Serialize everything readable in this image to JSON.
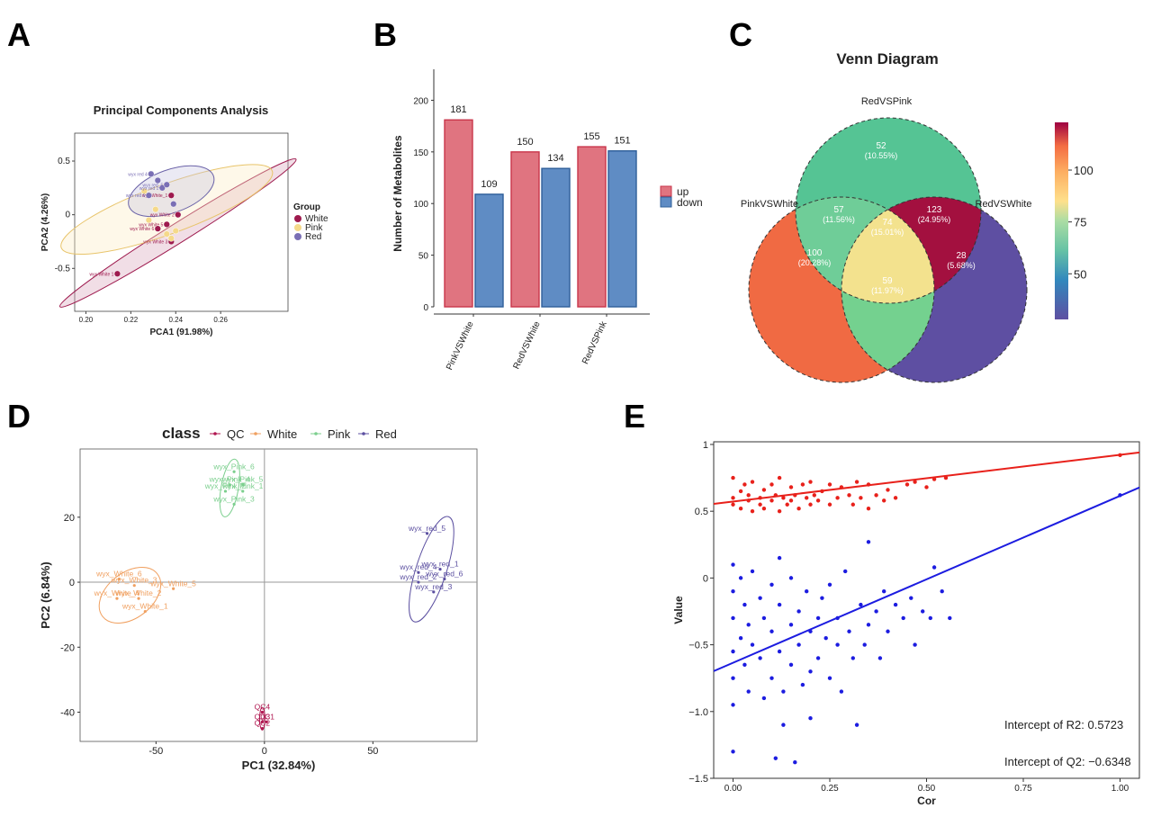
{
  "panels": {
    "a": "A",
    "b": "B",
    "c": "C",
    "d": "D",
    "e": "E"
  },
  "chart_data": [
    {
      "type": "scatter",
      "panel": "A",
      "title": "Principal Components Analysis",
      "xlabel": "PCA1 (91.98%)",
      "ylabel": "PCA2 (4.26%)",
      "xlim": [
        0.195,
        0.29
      ],
      "ylim": [
        -0.9,
        0.76
      ],
      "xticks": [
        "0.20",
        "0.22",
        "0.24",
        "0.26"
      ],
      "xtick_values": [
        0.2,
        0.22,
        0.24,
        0.26
      ],
      "yticks": [
        "0.5",
        "0",
        "-0.5"
      ],
      "ytick_values": [
        0.5,
        0,
        -0.5
      ],
      "legend_title": "Group",
      "legend": [
        {
          "name": "White",
          "color": "#9e1a4e"
        },
        {
          "name": "Pink",
          "color": "#f5d98a"
        },
        {
          "name": "Red",
          "color": "#7a6fb5"
        }
      ],
      "series": [
        {
          "name": "White",
          "color": "#9e1a4e",
          "points": [
            {
              "x": 0.214,
              "y": -0.55,
              "label": "wyx White 1"
            },
            {
              "x": 0.241,
              "y": 0.0,
              "label": "wyx White 2"
            },
            {
              "x": 0.238,
              "y": -0.25,
              "label": "wyx White 3"
            },
            {
              "x": 0.238,
              "y": 0.18,
              "label": "wyx White_1"
            },
            {
              "x": 0.236,
              "y": -0.09,
              "label": "wyx White 5"
            },
            {
              "x": 0.232,
              "y": -0.13,
              "label": "wyx White 6"
            }
          ]
        },
        {
          "name": "Pink",
          "color": "#f5d98a",
          "points": [
            {
              "x": 0.236,
              "y": -0.18,
              "label": ""
            },
            {
              "x": 0.231,
              "y": 0.05,
              "label": ""
            },
            {
              "x": 0.226,
              "y": 0.22,
              "label": ""
            },
            {
              "x": 0.238,
              "y": -0.22,
              "label": ""
            },
            {
              "x": 0.24,
              "y": -0.15,
              "label": ""
            },
            {
              "x": 0.228,
              "y": -0.05,
              "label": ""
            }
          ]
        },
        {
          "name": "Red",
          "color": "#7a6fb5",
          "points": [
            {
              "x": 0.229,
              "y": 0.38,
              "label": "wyx red 4"
            },
            {
              "x": 0.232,
              "y": 0.32,
              "label": ""
            },
            {
              "x": 0.234,
              "y": 0.25,
              "label": "wyx red 1"
            },
            {
              "x": 0.236,
              "y": 0.28,
              "label": "wyx red_5"
            },
            {
              "x": 0.228,
              "y": 0.18,
              "label": "wyx red 6"
            },
            {
              "x": 0.239,
              "y": 0.1,
              "label": ""
            }
          ]
        }
      ],
      "ellipses": [
        {
          "group": "White",
          "cx": 0.241,
          "cy": -0.17,
          "rx": 0.062,
          "ry": 0.09,
          "angle": -32,
          "fill": "#d8a0b8",
          "stroke": "#9e1a4e"
        },
        {
          "group": "Pink",
          "cx": 0.236,
          "cy": 0.05,
          "rx": 0.05,
          "ry": 0.23,
          "angle": -20,
          "fill": "#fbecc0",
          "stroke": "#e8c46a"
        },
        {
          "group": "Red",
          "cx": 0.238,
          "cy": 0.22,
          "rx": 0.02,
          "ry": 0.2,
          "angle": -20,
          "fill": "#c7c2e0",
          "stroke": "#6b63a8"
        }
      ]
    },
    {
      "type": "bar",
      "panel": "B",
      "ylabel": "Number of Metabolites",
      "categories": [
        "PinkVSWhite",
        "RedVSWhite",
        "RedVSPink"
      ],
      "ylim": [
        0,
        230
      ],
      "yticks": [
        "0",
        "50",
        "100",
        "150",
        "200"
      ],
      "ytick_values": [
        0,
        50,
        100,
        150,
        200
      ],
      "series": [
        {
          "name": "up",
          "color": "#e07480",
          "edge": "#c9354a",
          "values": [
            181,
            150,
            155
          ]
        },
        {
          "name": "down",
          "color": "#5f8cc4",
          "edge": "#2f5f9a",
          "values": [
            109,
            134,
            151
          ]
        }
      ]
    },
    {
      "type": "venn",
      "panel": "C",
      "title": "Venn Diagram",
      "sets": [
        "RedVSPink",
        "PinkVSWhite",
        "RedVSWhite"
      ],
      "regions": [
        {
          "value": "52",
          "pct": "(10.55%)",
          "color": "#55c494"
        },
        {
          "value": "100",
          "pct": "(20.28%)",
          "color": "#f06a43"
        },
        {
          "value": "28",
          "pct": "(5.68%)",
          "color": "#5e4fa2"
        },
        {
          "value": "57",
          "pct": "(11.56%)",
          "color": "#6fcd98"
        },
        {
          "value": "123",
          "pct": "(24.95%)",
          "color": "#a3103f"
        },
        {
          "value": "59",
          "pct": "(11.97%)",
          "color": "#74d18f"
        },
        {
          "value": "74",
          "pct": "(15.01%)",
          "color": "#f3e28e"
        }
      ],
      "colorbar": {
        "ticks": [
          "100",
          "75",
          "50"
        ],
        "tick_values": [
          100,
          75,
          50
        ],
        "min": 28,
        "max": 123
      }
    },
    {
      "type": "scatter",
      "panel": "D",
      "xlabel": "PC1 (32.84%)",
      "ylabel": "PC2 (6.84%)",
      "xlim": [
        -85,
        98
      ],
      "ylim": [
        -49,
        41
      ],
      "xticks": [
        "-50",
        "0",
        "50"
      ],
      "xtick_values": [
        -50,
        0,
        50
      ],
      "yticks": [
        "20",
        "0",
        "-20",
        "-40"
      ],
      "ytick_values": [
        20,
        0,
        -20,
        -40
      ],
      "legend_title": "class",
      "legend": [
        {
          "name": "QC",
          "color": "#b0154f"
        },
        {
          "name": "White",
          "color": "#f0a060"
        },
        {
          "name": "Pink",
          "color": "#7ccf8e"
        },
        {
          "name": "Red",
          "color": "#5b4fa0"
        }
      ],
      "series": [
        {
          "name": "QC",
          "color": "#b0154f",
          "points": [
            {
              "x": -1,
              "y": -40,
              "label": "QC4"
            },
            {
              "x": 1,
              "y": -43,
              "label": "QC1"
            },
            {
              "x": -1,
              "y": -43,
              "label": "QC3"
            },
            {
              "x": -1,
              "y": -45,
              "label": "QC2"
            }
          ]
        },
        {
          "name": "White",
          "color": "#f0a060",
          "points": [
            {
              "x": -67,
              "y": 1,
              "label": "wyx_White_6"
            },
            {
              "x": -60,
              "y": -1,
              "label": "wyx_White_3"
            },
            {
              "x": -42,
              "y": -2,
              "label": "wyx_White_5"
            },
            {
              "x": -68,
              "y": -5,
              "label": "wyx_White_4"
            },
            {
              "x": -58,
              "y": -5,
              "label": "wyx_White_2"
            },
            {
              "x": -55,
              "y": -9,
              "label": "wyx_White_1"
            }
          ]
        },
        {
          "name": "Pink",
          "color": "#7ccf8e",
          "points": [
            {
              "x": -14,
              "y": 34,
              "label": "wyx_Pink_6"
            },
            {
              "x": -10,
              "y": 30,
              "label": "wyx_Pink_5"
            },
            {
              "x": -16,
              "y": 30,
              "label": "wyx_Pink_4"
            },
            {
              "x": -18,
              "y": 28,
              "label": "wyx_Pink_2"
            },
            {
              "x": -10,
              "y": 28,
              "label": "wyx_Pink_1"
            },
            {
              "x": -14,
              "y": 24,
              "label": "wyx_Pink_3"
            }
          ]
        },
        {
          "name": "Red",
          "color": "#5b4fa0",
          "points": [
            {
              "x": 75,
              "y": 15,
              "label": "wyx_red_5"
            },
            {
              "x": 81,
              "y": 4,
              "label": "wyx_red_1"
            },
            {
              "x": 71,
              "y": 3,
              "label": "wyx_red_4"
            },
            {
              "x": 83,
              "y": 1,
              "label": "wyx_red_6"
            },
            {
              "x": 71,
              "y": 0,
              "label": "wyx_red_2"
            },
            {
              "x": 78,
              "y": -3,
              "label": "wyx_red_3"
            }
          ]
        }
      ],
      "ellipses": [
        {
          "group": "White",
          "cx": -62,
          "cy": -4,
          "rx": 16,
          "ry": 7,
          "angle": -38,
          "stroke": "#f0a060"
        },
        {
          "group": "Pink",
          "cx": -16,
          "cy": 29,
          "rx": 4,
          "ry": 9,
          "angle": 10,
          "stroke": "#7ccf8e"
        },
        {
          "group": "Red",
          "cx": 77,
          "cy": 4,
          "rx": 7,
          "ry": 17,
          "angle": 18,
          "stroke": "#5b4fa0"
        },
        {
          "group": "QC",
          "cx": -1,
          "cy": -42,
          "rx": 1.2,
          "ry": 3.5,
          "angle": 0,
          "stroke": "#b0154f"
        }
      ]
    },
    {
      "type": "scatter",
      "panel": "E",
      "xlabel": "Cor",
      "ylabel": "Value",
      "xlim": [
        -0.05,
        1.05
      ],
      "ylim": [
        -1.5,
        1.02
      ],
      "xticks": [
        "0.00",
        "0.25",
        "0.50",
        "0.75",
        "1.00"
      ],
      "xtick_values": [
        0,
        0.25,
        0.5,
        0.75,
        1.0
      ],
      "yticks": [
        "1",
        "0.5",
        "0",
        "−0.5",
        "−1.0",
        "−1.5"
      ],
      "ytick_values": [
        1,
        0.5,
        0,
        -0.5,
        -1.0,
        -1.5
      ],
      "series": [
        {
          "name": "R2",
          "color": "#e8211b",
          "line": {
            "intercept": 0.5723,
            "slope": 0.35,
            "x_from": -0.05,
            "x_to": 1.05
          }
        },
        {
          "name": "Q2",
          "color": "#1c1ce0",
          "line": {
            "intercept": -0.6348,
            "slope": 1.25,
            "x_from": -0.05,
            "x_to": 1.05
          }
        }
      ],
      "points_r2": [
        [
          0,
          0.75
        ],
        [
          0,
          0.6
        ],
        [
          0,
          0.55
        ],
        [
          0.02,
          0.65
        ],
        [
          0.02,
          0.52
        ],
        [
          0.03,
          0.7
        ],
        [
          0.04,
          0.58
        ],
        [
          0.04,
          0.62
        ],
        [
          0.05,
          0.5
        ],
        [
          0.05,
          0.72
        ],
        [
          0.07,
          0.6
        ],
        [
          0.07,
          0.55
        ],
        [
          0.08,
          0.66
        ],
        [
          0.08,
          0.52
        ],
        [
          0.1,
          0.7
        ],
        [
          0.1,
          0.58
        ],
        [
          0.11,
          0.62
        ],
        [
          0.12,
          0.5
        ],
        [
          0.12,
          0.75
        ],
        [
          0.13,
          0.6
        ],
        [
          0.14,
          0.55
        ],
        [
          0.15,
          0.68
        ],
        [
          0.15,
          0.58
        ],
        [
          0.16,
          0.62
        ],
        [
          0.17,
          0.52
        ],
        [
          0.18,
          0.7
        ],
        [
          0.19,
          0.6
        ],
        [
          0.2,
          0.55
        ],
        [
          0.2,
          0.72
        ],
        [
          0.21,
          0.62
        ],
        [
          0.22,
          0.58
        ],
        [
          0.23,
          0.65
        ],
        [
          0.25,
          0.7
        ],
        [
          0.25,
          0.55
        ],
        [
          0.27,
          0.6
        ],
        [
          0.28,
          0.68
        ],
        [
          0.3,
          0.62
        ],
        [
          0.31,
          0.55
        ],
        [
          0.32,
          0.72
        ],
        [
          0.33,
          0.6
        ],
        [
          0.35,
          0.52
        ],
        [
          0.35,
          0.7
        ],
        [
          0.37,
          0.62
        ],
        [
          0.39,
          0.58
        ],
        [
          0.4,
          0.66
        ],
        [
          0.42,
          0.6
        ],
        [
          0.45,
          0.7
        ],
        [
          0.47,
          0.72
        ],
        [
          0.5,
          0.68
        ],
        [
          0.52,
          0.74
        ],
        [
          0.55,
          0.75
        ],
        [
          1.0,
          0.92
        ]
      ],
      "points_q2": [
        [
          0,
          0.1
        ],
        [
          0,
          -0.1
        ],
        [
          0,
          -0.3
        ],
        [
          0,
          -0.55
        ],
        [
          0,
          -0.75
        ],
        [
          0,
          -0.95
        ],
        [
          0,
          -1.3
        ],
        [
          0.02,
          0.0
        ],
        [
          0.02,
          -0.45
        ],
        [
          0.03,
          -0.2
        ],
        [
          0.03,
          -0.65
        ],
        [
          0.04,
          -0.35
        ],
        [
          0.04,
          -0.85
        ],
        [
          0.05,
          0.05
        ],
        [
          0.05,
          -0.5
        ],
        [
          0.07,
          -0.15
        ],
        [
          0.07,
          -0.6
        ],
        [
          0.08,
          -0.3
        ],
        [
          0.08,
          -0.9
        ],
        [
          0.1,
          -0.05
        ],
        [
          0.1,
          -0.4
        ],
        [
          0.1,
          -0.75
        ],
        [
          0.11,
          -1.35
        ],
        [
          0.12,
          0.15
        ],
        [
          0.12,
          -0.2
        ],
        [
          0.12,
          -0.55
        ],
        [
          0.13,
          -0.85
        ],
        [
          0.13,
          -1.1
        ],
        [
          0.15,
          0.0
        ],
        [
          0.15,
          -0.35
        ],
        [
          0.15,
          -0.65
        ],
        [
          0.16,
          -1.38
        ],
        [
          0.17,
          -0.25
        ],
        [
          0.17,
          -0.5
        ],
        [
          0.18,
          -0.8
        ],
        [
          0.19,
          -0.1
        ],
        [
          0.2,
          -0.4
        ],
        [
          0.2,
          -0.7
        ],
        [
          0.2,
          -1.05
        ],
        [
          0.22,
          -0.3
        ],
        [
          0.22,
          -0.6
        ],
        [
          0.23,
          -0.15
        ],
        [
          0.24,
          -0.45
        ],
        [
          0.25,
          -0.75
        ],
        [
          0.25,
          -0.05
        ],
        [
          0.27,
          -0.5
        ],
        [
          0.27,
          -0.3
        ],
        [
          0.28,
          -0.85
        ],
        [
          0.29,
          0.05
        ],
        [
          0.3,
          -0.4
        ],
        [
          0.31,
          -0.6
        ],
        [
          0.32,
          -1.1
        ],
        [
          0.33,
          -0.2
        ],
        [
          0.34,
          -0.5
        ],
        [
          0.35,
          0.27
        ],
        [
          0.35,
          -0.35
        ],
        [
          0.37,
          -0.25
        ],
        [
          0.38,
          -0.6
        ],
        [
          0.39,
          -0.1
        ],
        [
          0.4,
          -0.4
        ],
        [
          0.42,
          -0.2
        ],
        [
          0.44,
          -0.3
        ],
        [
          0.46,
          -0.15
        ],
        [
          0.47,
          -0.5
        ],
        [
          0.49,
          -0.25
        ],
        [
          0.51,
          -0.3
        ],
        [
          0.52,
          0.08
        ],
        [
          0.54,
          -0.1
        ],
        [
          0.56,
          -0.3
        ],
        [
          1.0,
          0.62
        ]
      ],
      "annotations": [
        "Intercept of R2: 0.5723",
        "Intercept of Q2: −0.6348"
      ]
    }
  ]
}
